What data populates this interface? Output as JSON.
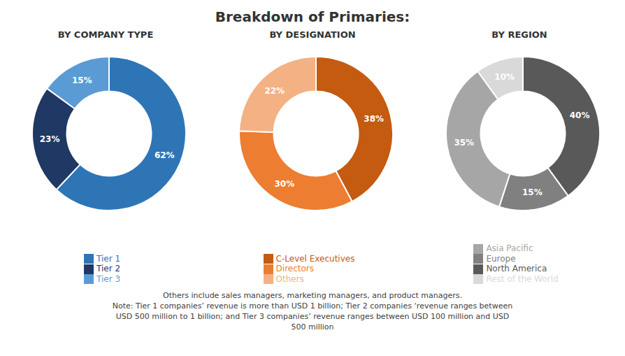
{
  "title": "Breakdown of Primaries:",
  "annotations": [
    "Others include sales managers, marketing managers, and product managers.",
    "Note: Tier 1 companies’ revenue is more than USD 1 billion; Tier 2 companies ‘revenue ranges between",
    "USD 500 million to 1 billion; and Tier 3 companies’ revenue ranges between USD 100 million and USD",
    "500 million"
  ],
  "chart_data": [
    {
      "type": "pie",
      "title": "BY COMPANY TYPE",
      "categories": [
        "Tier 1",
        "Tier 2",
        "Tier 3"
      ],
      "values": [
        62,
        23,
        15
      ],
      "value_labels": [
        "62%",
        "23%",
        "15%"
      ],
      "colors": [
        "#2e75b6",
        "#1f3864",
        "#5b9bd5"
      ],
      "data_labels": true,
      "legend": "bottom"
    },
    {
      "type": "pie",
      "title": "BY DESIGNATION",
      "categories": [
        "C-Level Executives",
        "Directors",
        "Others"
      ],
      "values": [
        38,
        30,
        22
      ],
      "value_labels": [
        "38%",
        "30%",
        "22%"
      ],
      "colors": [
        "#c55a11",
        "#ed7d31",
        "#f4b183"
      ],
      "data_labels": true,
      "legend": "bottom"
    },
    {
      "type": "pie",
      "title": "BY REGION",
      "categories": [
        "North America",
        "Europe",
        "Asia Pacific",
        "Rest of the World"
      ],
      "values": [
        40,
        15,
        35,
        10
      ],
      "value_labels": [
        "40%",
        "15%",
        "35%",
        "10%"
      ],
      "colors": [
        "#595959",
        "#808080",
        "#a6a6a6",
        "#d9d9d9"
      ],
      "data_labels": true,
      "legend": "bottom"
    }
  ]
}
